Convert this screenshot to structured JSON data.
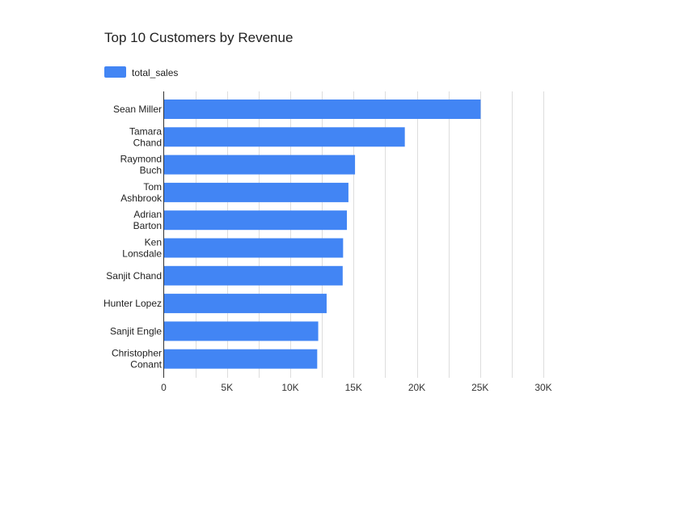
{
  "chart_data": {
    "type": "bar",
    "orientation": "horizontal",
    "title": "Top 10 Customers by Revenue",
    "legend_position": "top-left",
    "grid": true,
    "xlabel": "",
    "ylabel": "",
    "xlim": [
      0,
      30000
    ],
    "x_ticks": [
      0,
      5000,
      10000,
      15000,
      20000,
      25000,
      30000
    ],
    "x_tick_labels": [
      "0",
      "5K",
      "10K",
      "15K",
      "20K",
      "25K",
      "30K"
    ],
    "categories": [
      "Sean Miller",
      "Tamara Chand",
      "Raymond Buch",
      "Tom Ashbrook",
      "Adrian Barton",
      "Ken Lonsdale",
      "Sanjit Chand",
      "Hunter Lopez",
      "Sanjit Engle",
      "Christopher Conant"
    ],
    "category_label_lines": [
      [
        "Sean Miller"
      ],
      [
        "Tamara",
        "Chand"
      ],
      [
        "Raymond",
        "Buch"
      ],
      [
        "Tom",
        "Ashbrook"
      ],
      [
        "Adrian",
        "Barton"
      ],
      [
        "Ken",
        "Lonsdale"
      ],
      [
        "Sanjit Chand"
      ],
      [
        "Hunter Lopez"
      ],
      [
        "Sanjit Engle"
      ],
      [
        "Christopher",
        "Conant"
      ]
    ],
    "series": [
      {
        "name": "total_sales",
        "color": "#4285f4",
        "values": [
          25043,
          19052,
          15117,
          14596,
          14474,
          14175,
          14142,
          12873,
          12209,
          12129
        ]
      }
    ]
  }
}
